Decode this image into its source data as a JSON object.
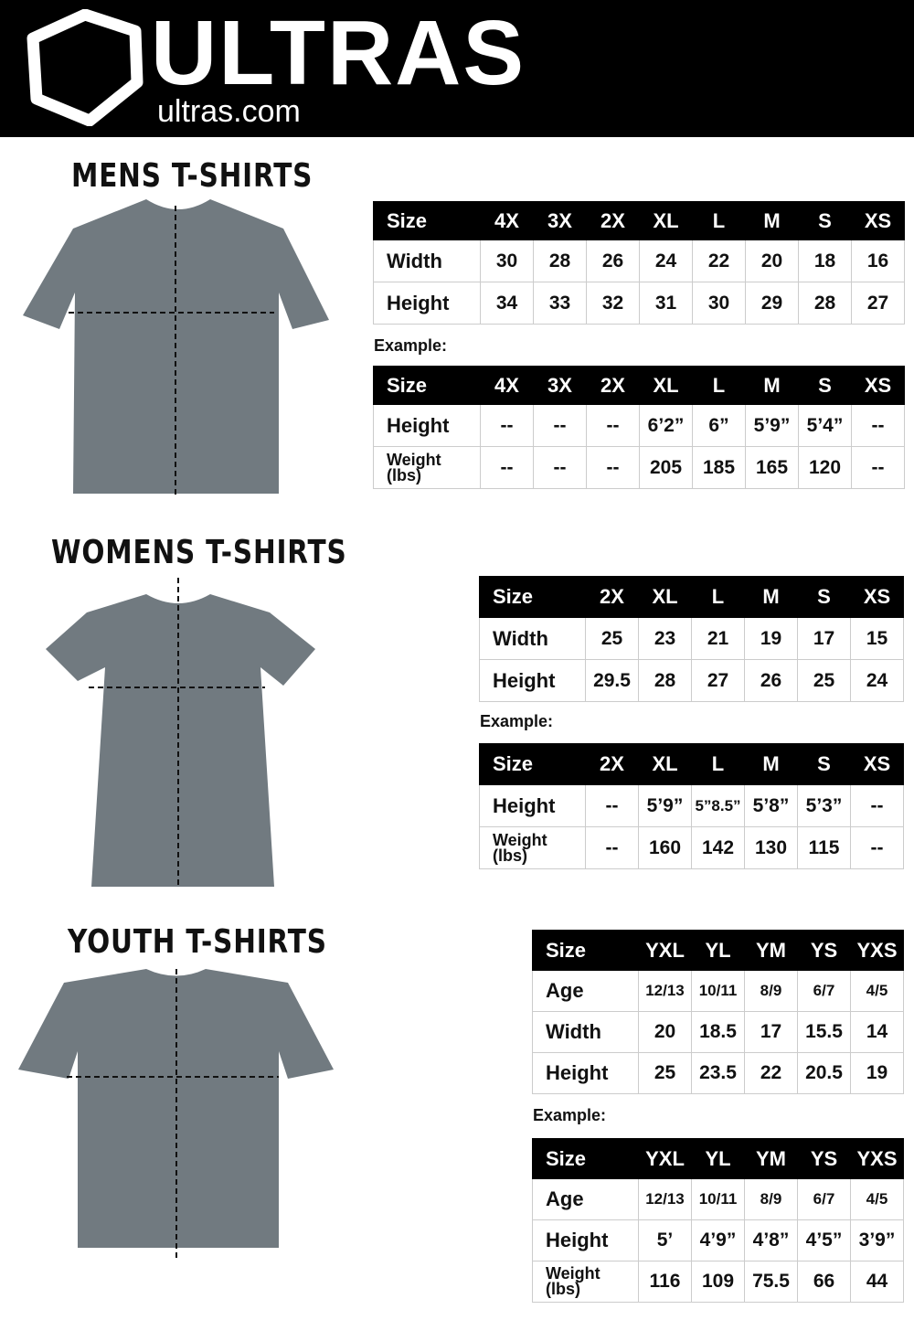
{
  "header": {
    "brand": "ULTRAS",
    "url": "ultras.com"
  },
  "sections": [
    {
      "title": "MENS T-SHIRTS",
      "example_label": "Example:",
      "measure": {
        "sizes": [
          "Size",
          "4X",
          "3X",
          "2X",
          "XL",
          "L",
          "M",
          "S",
          "XS"
        ],
        "rows": [
          [
            "Width",
            "30",
            "28",
            "26",
            "24",
            "22",
            "20",
            "18",
            "16"
          ],
          [
            "Height",
            "34",
            "33",
            "32",
            "31",
            "30",
            "29",
            "28",
            "27"
          ]
        ]
      },
      "example": {
        "sizes": [
          "Size",
          "4X",
          "3X",
          "2X",
          "XL",
          "L",
          "M",
          "S",
          "XS"
        ],
        "rows": [
          [
            "Height",
            "--",
            "--",
            "--",
            "6’2”",
            "6”",
            "5’9”",
            "5’4”",
            "--"
          ],
          [
            "Weight (lbs)",
            "--",
            "--",
            "--",
            "205",
            "185",
            "165",
            "120",
            "--"
          ]
        ]
      }
    },
    {
      "title": "WOMENS T-SHIRTS",
      "example_label": "Example:",
      "measure": {
        "sizes": [
          "Size",
          "2X",
          "XL",
          "L",
          "M",
          "S",
          "XS"
        ],
        "rows": [
          [
            "Width",
            "25",
            "23",
            "21",
            "19",
            "17",
            "15"
          ],
          [
            "Height",
            "29.5",
            "28",
            "27",
            "26",
            "25",
            "24"
          ]
        ]
      },
      "example": {
        "sizes": [
          "Size",
          "2X",
          "XL",
          "L",
          "M",
          "S",
          "XS"
        ],
        "rows": [
          [
            "Height",
            "--",
            "5’9”",
            "5”8.5”",
            "5’8”",
            "5’3”",
            "--"
          ],
          [
            "Weight (lbs)",
            "--",
            "160",
            "142",
            "130",
            "115",
            "--"
          ]
        ]
      }
    },
    {
      "title": "YOUTH T-SHIRTS",
      "example_label": "Example:",
      "measure": {
        "sizes": [
          "Size",
          "YXL",
          "YL",
          "YM",
          "YS",
          "YXS"
        ],
        "rows": [
          [
            "Age",
            "12/13",
            "10/11",
            "8/9",
            "6/7",
            "4/5"
          ],
          [
            "Width",
            "20",
            "18.5",
            "17",
            "15.5",
            "14"
          ],
          [
            "Height",
            "25",
            "23.5",
            "22",
            "20.5",
            "19"
          ]
        ]
      },
      "example": {
        "sizes": [
          "Size",
          "YXL",
          "YL",
          "YM",
          "YS",
          "YXS"
        ],
        "rows": [
          [
            "Age",
            "12/13",
            "10/11",
            "8/9",
            "6/7",
            "4/5"
          ],
          [
            "Height",
            "5’",
            "4’9”",
            "4’8”",
            "4’5”",
            "3’9”"
          ],
          [
            "Weight (lbs)",
            "116",
            "109",
            "75.5",
            "66",
            "44"
          ]
        ]
      }
    }
  ],
  "colors": {
    "shirt": "#717a80",
    "header": "#000000"
  }
}
